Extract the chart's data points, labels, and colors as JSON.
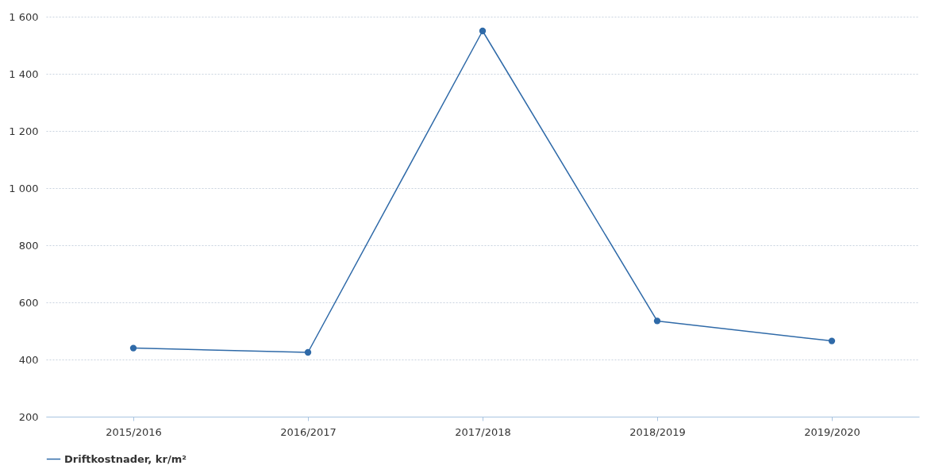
{
  "chart_data": {
    "type": "line",
    "categories": [
      "2015/2016",
      "2016/2017",
      "2017/2018",
      "2018/2019",
      "2019/2020"
    ],
    "series": [
      {
        "name": "Driftkostnader, kr/m²",
        "color": "#2f6aa8",
        "values": [
          440,
          425,
          1550,
          535,
          465
        ]
      }
    ],
    "ylim": [
      200,
      1600
    ],
    "yticks": [
      200,
      400,
      600,
      800,
      {
        "value": 1000,
        "label": "1 000"
      },
      {
        "value": 1200,
        "label": "1 200"
      },
      {
        "value": 1400,
        "label": "1 400"
      },
      {
        "value": 1600,
        "label": "1 600"
      }
    ],
    "grid": "y",
    "legend": "bottom",
    "marker": "circle",
    "line_style": "solid"
  }
}
